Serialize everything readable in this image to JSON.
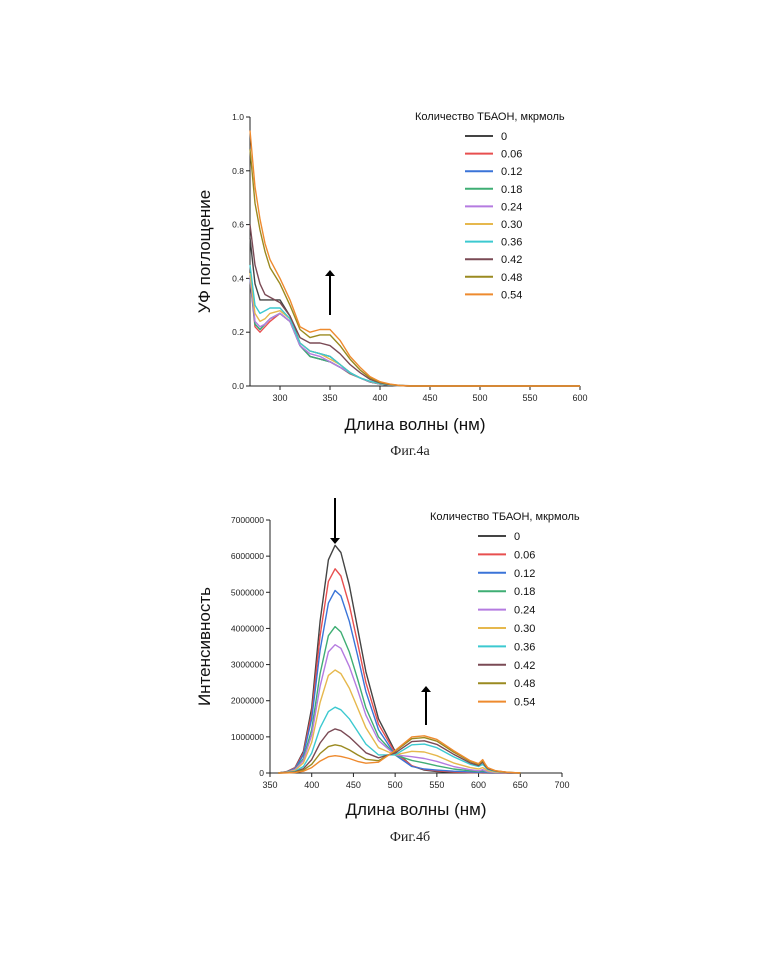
{
  "captions": {
    "fig_a": "Фиг.4а",
    "fig_b": "Фиг.4б"
  },
  "series_colors": [
    "#444444",
    "#e84f4f",
    "#3a74d8",
    "#3fae74",
    "#b57be0",
    "#e6b84d",
    "#3cc9d0",
    "#7a4a55",
    "#9a8a20",
    "#ee8a2e"
  ],
  "chart_data": [
    {
      "type": "line",
      "title": "",
      "xlabel": "Длина волны (нм)",
      "ylabel": "УФ поглощение",
      "xlim": [
        270,
        600
      ],
      "ylim": [
        0,
        1.0
      ],
      "x_ticks": [
        "300",
        "350",
        "400",
        "450",
        "500",
        "550",
        "600"
      ],
      "y_ticks": [
        "0.0",
        "0.2",
        "0.4",
        "0.6",
        "0.8",
        "1.0"
      ],
      "legend_title": "Количество ТБАОН, мкрмоль",
      "legend_position": "top-right",
      "annotation": "arrow-up",
      "x": [
        270,
        275,
        280,
        285,
        290,
        300,
        310,
        320,
        330,
        340,
        350,
        360,
        370,
        380,
        390,
        400,
        410,
        420,
        430,
        450,
        500,
        600
      ],
      "series": [
        {
          "name": "0",
          "values": [
            0.55,
            0.38,
            0.32,
            0.32,
            0.32,
            0.32,
            0.26,
            0.16,
            0.13,
            0.12,
            0.11,
            0.08,
            0.05,
            0.03,
            0.015,
            0.008,
            0.004,
            0.002,
            0.001,
            0.0,
            0.0,
            0.0
          ]
        },
        {
          "name": "0.06",
          "values": [
            0.4,
            0.22,
            0.2,
            0.22,
            0.24,
            0.27,
            0.24,
            0.15,
            0.11,
            0.1,
            0.09,
            0.07,
            0.045,
            0.03,
            0.015,
            0.007,
            0.003,
            0.001,
            0.0,
            0.0,
            0.0,
            0.0
          ]
        },
        {
          "name": "0.12",
          "values": [
            0.4,
            0.23,
            0.21,
            0.23,
            0.25,
            0.27,
            0.24,
            0.15,
            0.11,
            0.1,
            0.09,
            0.07,
            0.047,
            0.03,
            0.015,
            0.007,
            0.003,
            0.001,
            0.0,
            0.0,
            0.0,
            0.0
          ]
        },
        {
          "name": "0.18",
          "values": [
            0.41,
            0.23,
            0.21,
            0.23,
            0.25,
            0.27,
            0.24,
            0.15,
            0.11,
            0.1,
            0.09,
            0.07,
            0.048,
            0.03,
            0.016,
            0.008,
            0.003,
            0.001,
            0.0,
            0.0,
            0.0,
            0.0
          ]
        },
        {
          "name": "0.24",
          "values": [
            0.41,
            0.24,
            0.22,
            0.23,
            0.25,
            0.27,
            0.24,
            0.15,
            0.12,
            0.11,
            0.09,
            0.07,
            0.05,
            0.03,
            0.016,
            0.008,
            0.003,
            0.001,
            0.0,
            0.0,
            0.0,
            0.0
          ]
        },
        {
          "name": "0.30",
          "values": [
            0.42,
            0.27,
            0.24,
            0.25,
            0.27,
            0.28,
            0.25,
            0.16,
            0.13,
            0.12,
            0.1,
            0.08,
            0.05,
            0.03,
            0.017,
            0.008,
            0.004,
            0.001,
            0.0,
            0.0,
            0.0,
            0.0
          ]
        },
        {
          "name": "0.36",
          "values": [
            0.45,
            0.3,
            0.27,
            0.28,
            0.29,
            0.29,
            0.25,
            0.16,
            0.13,
            0.12,
            0.11,
            0.08,
            0.05,
            0.03,
            0.018,
            0.009,
            0.004,
            0.002,
            0.0,
            0.0,
            0.0,
            0.0
          ]
        },
        {
          "name": "0.42",
          "values": [
            0.6,
            0.45,
            0.38,
            0.34,
            0.33,
            0.31,
            0.26,
            0.18,
            0.16,
            0.16,
            0.15,
            0.12,
            0.08,
            0.05,
            0.025,
            0.012,
            0.005,
            0.002,
            0.0,
            0.0,
            0.0,
            0.0
          ]
        },
        {
          "name": "0.48",
          "values": [
            0.88,
            0.68,
            0.58,
            0.5,
            0.44,
            0.38,
            0.3,
            0.21,
            0.18,
            0.19,
            0.19,
            0.15,
            0.1,
            0.06,
            0.03,
            0.014,
            0.006,
            0.002,
            0.0,
            0.0,
            0.0,
            0.0
          ]
        },
        {
          "name": "0.54",
          "values": [
            0.95,
            0.74,
            0.62,
            0.53,
            0.47,
            0.4,
            0.32,
            0.22,
            0.2,
            0.21,
            0.21,
            0.17,
            0.11,
            0.07,
            0.035,
            0.016,
            0.007,
            0.002,
            0.0,
            0.0,
            0.0,
            0.0
          ]
        }
      ]
    },
    {
      "type": "line",
      "title": "",
      "xlabel": "Длина волны (нм)",
      "ylabel": "Интенсивность",
      "xlim": [
        350,
        700
      ],
      "ylim": [
        0,
        7000000
      ],
      "x_ticks": [
        "350",
        "400",
        "450",
        "500",
        "550",
        "600",
        "650",
        "700"
      ],
      "y_ticks": [
        "0",
        "1000000",
        "2000000",
        "3000000",
        "4000000",
        "5000000",
        "6000000",
        "7000000"
      ],
      "legend_title": "Количество ТБАОН, мкрмоль",
      "legend_position": "top-right",
      "annotation": "arrow-down-and-up",
      "x": [
        360,
        370,
        380,
        390,
        400,
        410,
        420,
        428,
        435,
        445,
        455,
        465,
        480,
        500,
        520,
        535,
        550,
        570,
        590,
        600,
        605,
        608,
        611,
        620,
        635,
        650
      ],
      "series": [
        {
          "name": "0",
          "values": [
            0,
            40000,
            150000,
            600000,
            1800000,
            4200000,
            5900000,
            6300000,
            6100000,
            5200000,
            4000000,
            2800000,
            1500000,
            600000,
            200000,
            80000,
            40000,
            20000,
            10000,
            5000,
            3000,
            2000,
            1000,
            0,
            0,
            0
          ]
        },
        {
          "name": "0.06",
          "values": [
            0,
            35000,
            140000,
            550000,
            1650000,
            3800000,
            5300000,
            5650000,
            5450000,
            4650000,
            3600000,
            2500000,
            1350000,
            560000,
            200000,
            100000,
            60000,
            30000,
            15000,
            10000,
            15000,
            10000,
            6000,
            3000,
            1000,
            0
          ]
        },
        {
          "name": "0.12",
          "values": [
            0,
            30000,
            120000,
            500000,
            1500000,
            3400000,
            4700000,
            5050000,
            4900000,
            4200000,
            3250000,
            2250000,
            1200000,
            500000,
            180000,
            110000,
            80000,
            50000,
            30000,
            20000,
            30000,
            20000,
            10000,
            5000,
            2000,
            0
          ]
        },
        {
          "name": "0.18",
          "values": [
            0,
            25000,
            100000,
            400000,
            1200000,
            2750000,
            3800000,
            4050000,
            3900000,
            3350000,
            2600000,
            1800000,
            1000000,
            500000,
            350000,
            280000,
            200000,
            110000,
            60000,
            40000,
            60000,
            40000,
            25000,
            12000,
            5000,
            0
          ]
        },
        {
          "name": "0.24",
          "values": [
            0,
            20000,
            90000,
            350000,
            1050000,
            2400000,
            3350000,
            3550000,
            3450000,
            2950000,
            2300000,
            1600000,
            900000,
            500000,
            450000,
            400000,
            320000,
            180000,
            90000,
            60000,
            90000,
            60000,
            35000,
            15000,
            5000,
            0
          ]
        },
        {
          "name": "0.30",
          "values": [
            0,
            18000,
            70000,
            280000,
            850000,
            1950000,
            2700000,
            2850000,
            2750000,
            2350000,
            1800000,
            1250000,
            700000,
            500000,
            600000,
            580000,
            480000,
            280000,
            150000,
            110000,
            150000,
            110000,
            60000,
            25000,
            8000,
            0
          ]
        },
        {
          "name": "0.36",
          "values": [
            0,
            12000,
            45000,
            180000,
            550000,
            1250000,
            1700000,
            1820000,
            1750000,
            1500000,
            1150000,
            800000,
            500000,
            500000,
            780000,
            800000,
            700000,
            450000,
            240000,
            180000,
            240000,
            170000,
            100000,
            45000,
            12000,
            0
          ]
        },
        {
          "name": "0.42",
          "values": [
            0,
            8000,
            30000,
            120000,
            370000,
            830000,
            1130000,
            1220000,
            1170000,
            1000000,
            780000,
            560000,
            420000,
            550000,
            870000,
            890000,
            790000,
            520000,
            280000,
            210000,
            300000,
            200000,
            120000,
            55000,
            15000,
            0
          ]
        },
        {
          "name": "0.48",
          "values": [
            0,
            5000,
            20000,
            80000,
            240000,
            540000,
            730000,
            780000,
            750000,
            640000,
            500000,
            380000,
            340000,
            600000,
            950000,
            980000,
            880000,
            580000,
            320000,
            240000,
            340000,
            230000,
            140000,
            60000,
            18000,
            0
          ]
        },
        {
          "name": "0.54",
          "values": [
            0,
            3000,
            12000,
            50000,
            150000,
            330000,
            450000,
            480000,
            460000,
            400000,
            320000,
            270000,
            300000,
            620000,
            1000000,
            1030000,
            930000,
            620000,
            340000,
            260000,
            370000,
            250000,
            150000,
            65000,
            20000,
            0
          ]
        }
      ]
    }
  ]
}
